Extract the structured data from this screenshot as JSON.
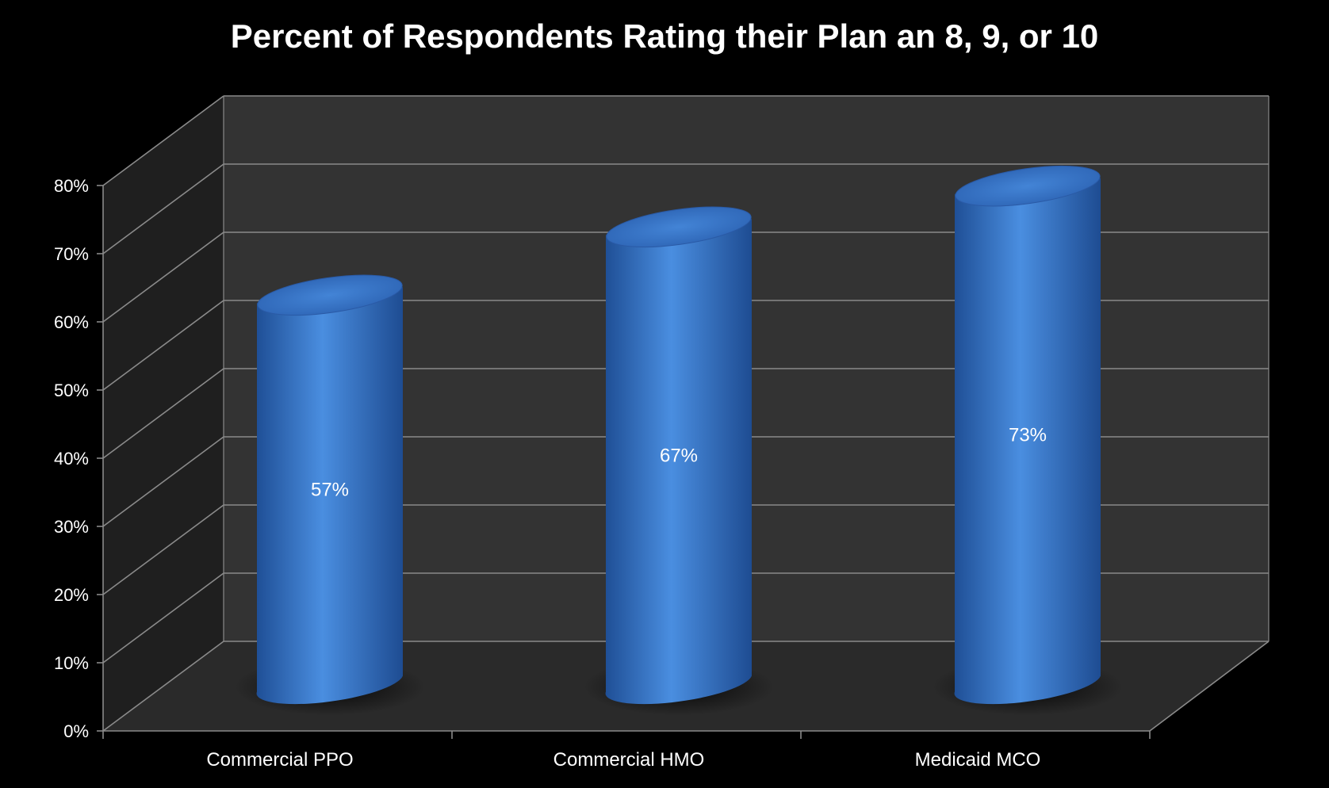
{
  "chart_data": {
    "type": "bar",
    "title": "Percent of Respondents Rating their Plan an 8, 9, or 10",
    "categories": [
      "Commercial PPO",
      "Commercial HMO",
      "Medicaid MCO"
    ],
    "values": [
      57,
      67,
      73
    ],
    "data_labels": [
      "57%",
      "67%",
      "73%"
    ],
    "y_ticks": [
      "0%",
      "10%",
      "20%",
      "30%",
      "40%",
      "50%",
      "60%",
      "70%",
      "80%"
    ],
    "ylim": [
      0,
      80
    ],
    "grid": true,
    "legend": "none",
    "style": "3d-cylinder",
    "colors": {
      "bar": "#3a78c9",
      "bar_light": "#4a8ee0",
      "bar_dark": "#1f4f96",
      "wall": "#333333",
      "floor": "#2a2a2a",
      "side": "#1f1f1f",
      "background": "#000000",
      "grid": "#8a8a8a",
      "text": "#ffffff"
    }
  }
}
